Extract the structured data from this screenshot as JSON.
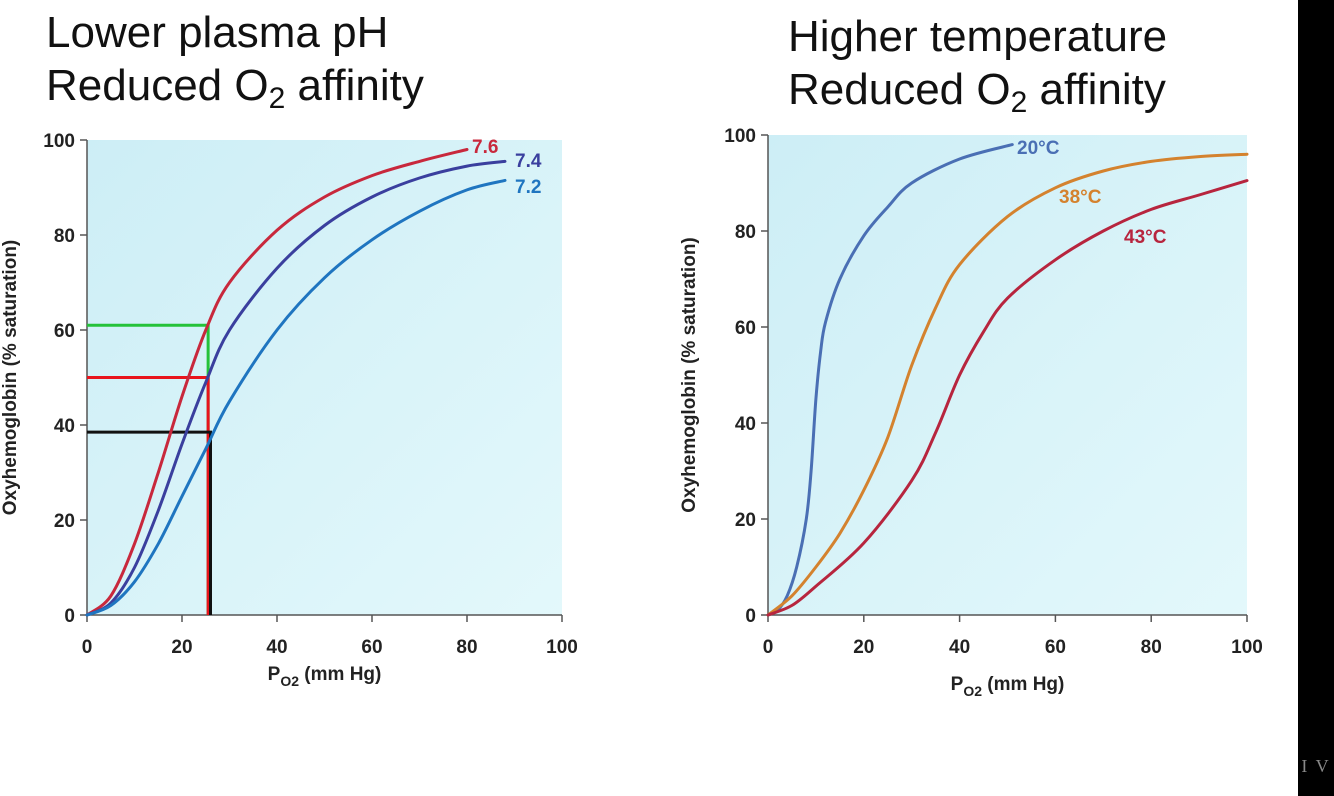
{
  "titles": {
    "left": {
      "line1": "Lower plasma pH",
      "line2_prefix": "Reduced O",
      "line2_sub": "2",
      "line2_suffix": " affinity"
    },
    "right": {
      "line1": "Higher temperature",
      "line2_prefix": "Reduced O",
      "line2_sub": "2",
      "line2_suffix": " affinity"
    }
  },
  "colors": {
    "plot_bg": "#d9f4f8",
    "axis": "#555555",
    "ph76": "#c8283c",
    "ph74": "#3a3f9e",
    "ph72": "#1f75c0",
    "t20": "#4a6fb4",
    "t38": "#d4822e",
    "t43": "#b7253e",
    "green_guide": "#25c23a",
    "red_guide": "#e8141c",
    "black_guide": "#111111"
  },
  "corner_mark": "I V",
  "chart_data": [
    {
      "type": "line",
      "id": "ph",
      "ylabel": "Oxyhemoglobin (% saturation)",
      "xlabel_prefix": "P",
      "xlabel_sub": "O2",
      "xlabel_suffix": " (mm Hg)",
      "xlim": [
        0,
        100
      ],
      "ylim": [
        0,
        100
      ],
      "xticks": [
        0,
        20,
        40,
        60,
        80,
        100
      ],
      "yticks": [
        0,
        20,
        40,
        60,
        80,
        100
      ],
      "series": [
        {
          "name": "7.6",
          "color": "#c8283c",
          "points": [
            [
              0,
              0
            ],
            [
              5,
              4
            ],
            [
              10,
              15
            ],
            [
              15,
              30
            ],
            [
              20,
              46
            ],
            [
              25,
              60
            ],
            [
              30,
              70
            ],
            [
              40,
              81
            ],
            [
              50,
              88
            ],
            [
              60,
              92.5
            ],
            [
              70,
              95.5
            ],
            [
              80,
              98
            ]
          ]
        },
        {
          "name": "7.4",
          "color": "#3a3f9e",
          "points": [
            [
              0,
              0
            ],
            [
              5,
              2.5
            ],
            [
              10,
              10
            ],
            [
              15,
              22
            ],
            [
              20,
              36
            ],
            [
              25,
              49
            ],
            [
              30,
              60
            ],
            [
              40,
              73
            ],
            [
              50,
              82
            ],
            [
              60,
              88
            ],
            [
              70,
              92
            ],
            [
              80,
              94.5
            ],
            [
              88,
              95.5
            ]
          ]
        },
        {
          "name": "7.2",
          "color": "#1f75c0",
          "points": [
            [
              0,
              0
            ],
            [
              5,
              2
            ],
            [
              10,
              7
            ],
            [
              15,
              15
            ],
            [
              20,
              25
            ],
            [
              25,
              35
            ],
            [
              30,
              45
            ],
            [
              40,
              60
            ],
            [
              50,
              71
            ],
            [
              60,
              79
            ],
            [
              70,
              85
            ],
            [
              80,
              89.5
            ],
            [
              88,
              91.5
            ]
          ]
        }
      ],
      "guides": [
        {
          "name": "green",
          "color": "#25c23a",
          "y": 61,
          "x": 25.5
        },
        {
          "name": "red",
          "color": "#e8141c",
          "y": 50,
          "x": 25.5
        },
        {
          "name": "black",
          "color": "#111111",
          "y": 38.5,
          "x": 26
        }
      ]
    },
    {
      "type": "line",
      "id": "temp",
      "ylabel": "Oxyhemoglobin (% saturation)",
      "xlabel_prefix": "P",
      "xlabel_sub": "O2",
      "xlabel_suffix": " (mm Hg)",
      "xlim": [
        0,
        100
      ],
      "ylim": [
        0,
        100
      ],
      "xticks": [
        0,
        20,
        40,
        60,
        80,
        100
      ],
      "yticks": [
        0,
        20,
        40,
        60,
        80,
        100
      ],
      "series": [
        {
          "name": "20°C",
          "color": "#4a6fb4",
          "points": [
            [
              0,
              0
            ],
            [
              2,
              1
            ],
            [
              4,
              4
            ],
            [
              6,
              10
            ],
            [
              8,
              20
            ],
            [
              9,
              30
            ],
            [
              10,
              45
            ],
            [
              11,
              55
            ],
            [
              12,
              61
            ],
            [
              15,
              70
            ],
            [
              20,
              79
            ],
            [
              25,
              85
            ],
            [
              30,
              90
            ],
            [
              40,
              95
            ],
            [
              51,
              98
            ]
          ]
        },
        {
          "name": "38°C",
          "color": "#d4822e",
          "points": [
            [
              0,
              0
            ],
            [
              5,
              4
            ],
            [
              10,
              10
            ],
            [
              15,
              17
            ],
            [
              20,
              26
            ],
            [
              25,
              37
            ],
            [
              30,
              52
            ],
            [
              35,
              64
            ],
            [
              40,
              73
            ],
            [
              50,
              83
            ],
            [
              60,
              89
            ],
            [
              70,
              92.5
            ],
            [
              80,
              94.5
            ],
            [
              90,
              95.5
            ],
            [
              100,
              96
            ]
          ]
        },
        {
          "name": "43°C",
          "color": "#b7253e",
          "points": [
            [
              0,
              0
            ],
            [
              5,
              2
            ],
            [
              10,
              6
            ],
            [
              20,
              15
            ],
            [
              30,
              28
            ],
            [
              35,
              38
            ],
            [
              40,
              50
            ],
            [
              45,
              59
            ],
            [
              50,
              66
            ],
            [
              60,
              74
            ],
            [
              70,
              80
            ],
            [
              80,
              84.5
            ],
            [
              90,
              87.5
            ],
            [
              100,
              90.5
            ]
          ]
        }
      ]
    }
  ]
}
